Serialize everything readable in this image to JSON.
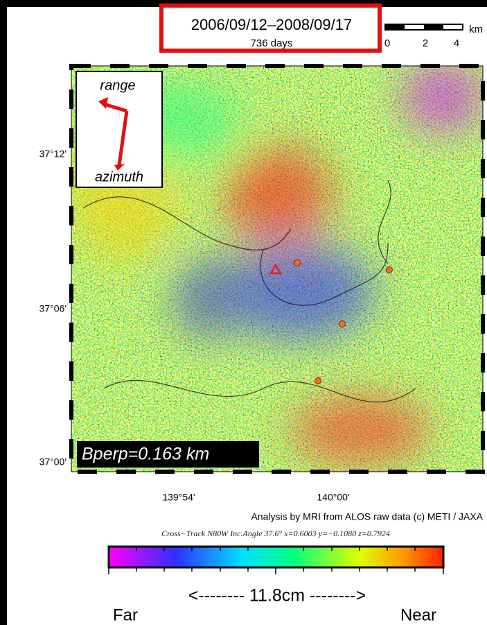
{
  "header": {
    "date_range": "2006/09/12–2008/09/17",
    "duration": "736 days"
  },
  "scale_bar": {
    "unit": "km",
    "labels": [
      "0",
      "2",
      "4"
    ]
  },
  "map": {
    "direction_labels": {
      "range": "range",
      "azimuth": "azimuth"
    },
    "lat_labels": [
      "37°12'",
      "37°06'",
      "37°00'"
    ],
    "lon_labels": [
      "139°54'",
      "140°00'"
    ],
    "bperp": "Bperp=0.163 km"
  },
  "credits": "Analysis by MRI from ALOS raw data (c) METI / JAXA",
  "geometry": "Cross−Track N80W  Inc.Angle 37.6°  x=0.6003  y=−0.1080  z=0.7924",
  "colorbar": {
    "label": "<-------- 11.8cm -------->",
    "far": "Far",
    "near": "Near"
  }
}
